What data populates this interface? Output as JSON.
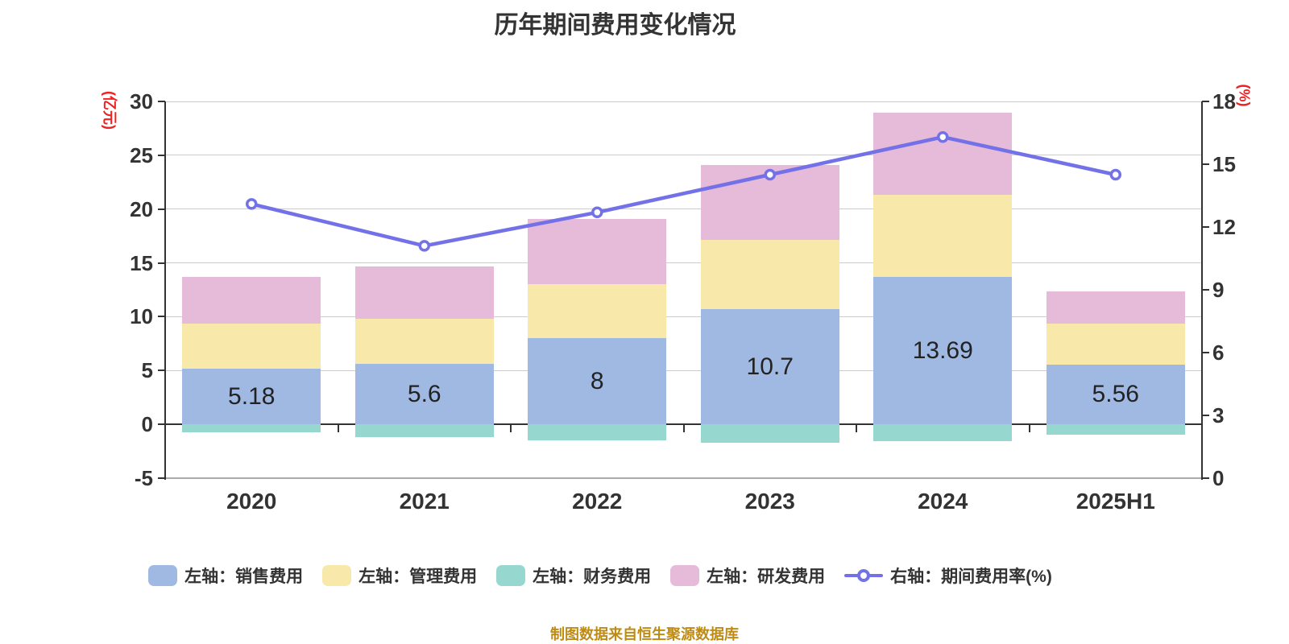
{
  "title": "历年期间费用变化情况",
  "caption": "制图数据来自恒生聚源数据库",
  "colors": {
    "sales": "#A0B9E2",
    "management": "#F8E9AA",
    "finance": "#96D8D0",
    "rnd": "#E6BAD9",
    "line": "#7371E8",
    "marker_fill": "#FFFFFF",
    "grid": "#CCCCCC",
    "baseline": "#AAAAAA",
    "axis": "#333333",
    "text": "#333333",
    "axis_name": "#EE2222",
    "caption": "#BE8C14",
    "background": "#FFFFFF"
  },
  "chart_data": {
    "type": "bar",
    "title": "历年期间费用变化情况",
    "stacked": true,
    "grid": true,
    "legend_position": "bottom",
    "categories": [
      "2020",
      "2021",
      "2022",
      "2023",
      "2024",
      "2025H1"
    ],
    "series": [
      {
        "name": "左轴：销售费用",
        "type": "bar",
        "axis": "left",
        "color_key": "sales",
        "values": [
          5.18,
          5.6,
          8,
          10.7,
          13.69,
          5.56
        ]
      },
      {
        "name": "左轴：管理费用",
        "type": "bar",
        "axis": "left",
        "color_key": "management",
        "values": [
          4.2,
          4.2,
          5.0,
          6.4,
          7.6,
          3.8
        ]
      },
      {
        "name": "左轴：财务费用",
        "type": "bar",
        "axis": "left",
        "color_key": "finance",
        "values": [
          -0.7,
          -1.2,
          -1.5,
          -1.7,
          -1.55,
          -0.95
        ]
      },
      {
        "name": "左轴：研发费用",
        "type": "bar",
        "axis": "left",
        "color_key": "rnd",
        "values": [
          4.3,
          4.9,
          6.1,
          7.0,
          7.7,
          3.0
        ]
      },
      {
        "name": "右轴：期间费用率(%)",
        "type": "line",
        "axis": "right",
        "color_key": "line",
        "values": [
          13.1,
          11.1,
          12.7,
          14.5,
          16.3,
          14.5
        ]
      }
    ],
    "bar_value_labels": [
      "5.18",
      "5.6",
      "8",
      "10.7",
      "13.69",
      "5.56"
    ],
    "left_axis": {
      "name": "(亿元)",
      "min": -5,
      "max": 30,
      "interval": 5,
      "ticks": [
        "30",
        "25",
        "20",
        "15",
        "10",
        "5",
        "0",
        "-5"
      ]
    },
    "right_axis": {
      "name": "(%)",
      "min": 0,
      "max": 18,
      "interval": 3,
      "ticks": [
        "18",
        "15",
        "12",
        "9",
        "6",
        "3",
        "0"
      ]
    }
  }
}
